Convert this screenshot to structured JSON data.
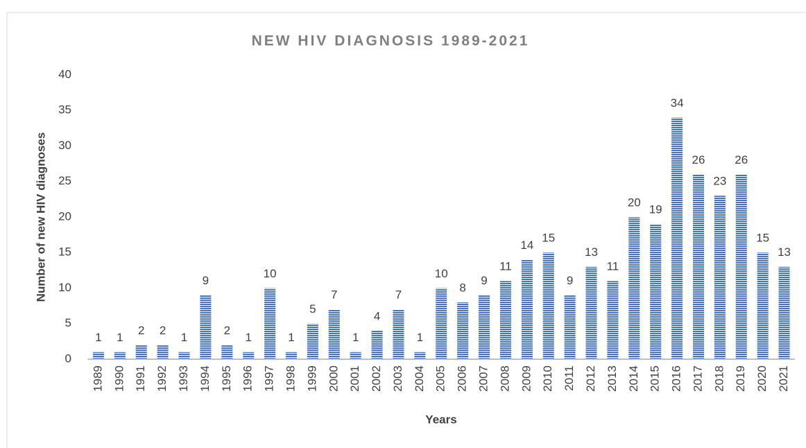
{
  "chart_data": {
    "type": "bar",
    "title": "NEW HIV DIAGNOSIS 1989-2021",
    "x_label": "Years",
    "y_label": "Number of new HIV diagnoses",
    "categories": [
      "1989",
      "1990",
      "1991",
      "1992",
      "1993",
      "1994",
      "1995",
      "1996",
      "1997",
      "1998",
      "1999",
      "2000",
      "2001",
      "2002",
      "2003",
      "2004",
      "2005",
      "2006",
      "2007",
      "2008",
      "2009",
      "2010",
      "2011",
      "2012",
      "2013",
      "2014",
      "2015",
      "2016",
      "2017",
      "2018",
      "2019",
      "2020",
      "2021"
    ],
    "values": [
      1,
      1,
      2,
      2,
      1,
      9,
      2,
      1,
      10,
      1,
      5,
      7,
      1,
      4,
      7,
      1,
      10,
      8,
      9,
      11,
      14,
      15,
      9,
      13,
      11,
      20,
      19,
      34,
      26,
      23,
      26,
      15,
      13
    ],
    "color": "#4472c4",
    "ylim": [
      0,
      40
    ],
    "yticks": [
      0,
      5,
      10,
      15,
      20,
      25,
      30,
      35,
      40
    ],
    "grid": false
  }
}
